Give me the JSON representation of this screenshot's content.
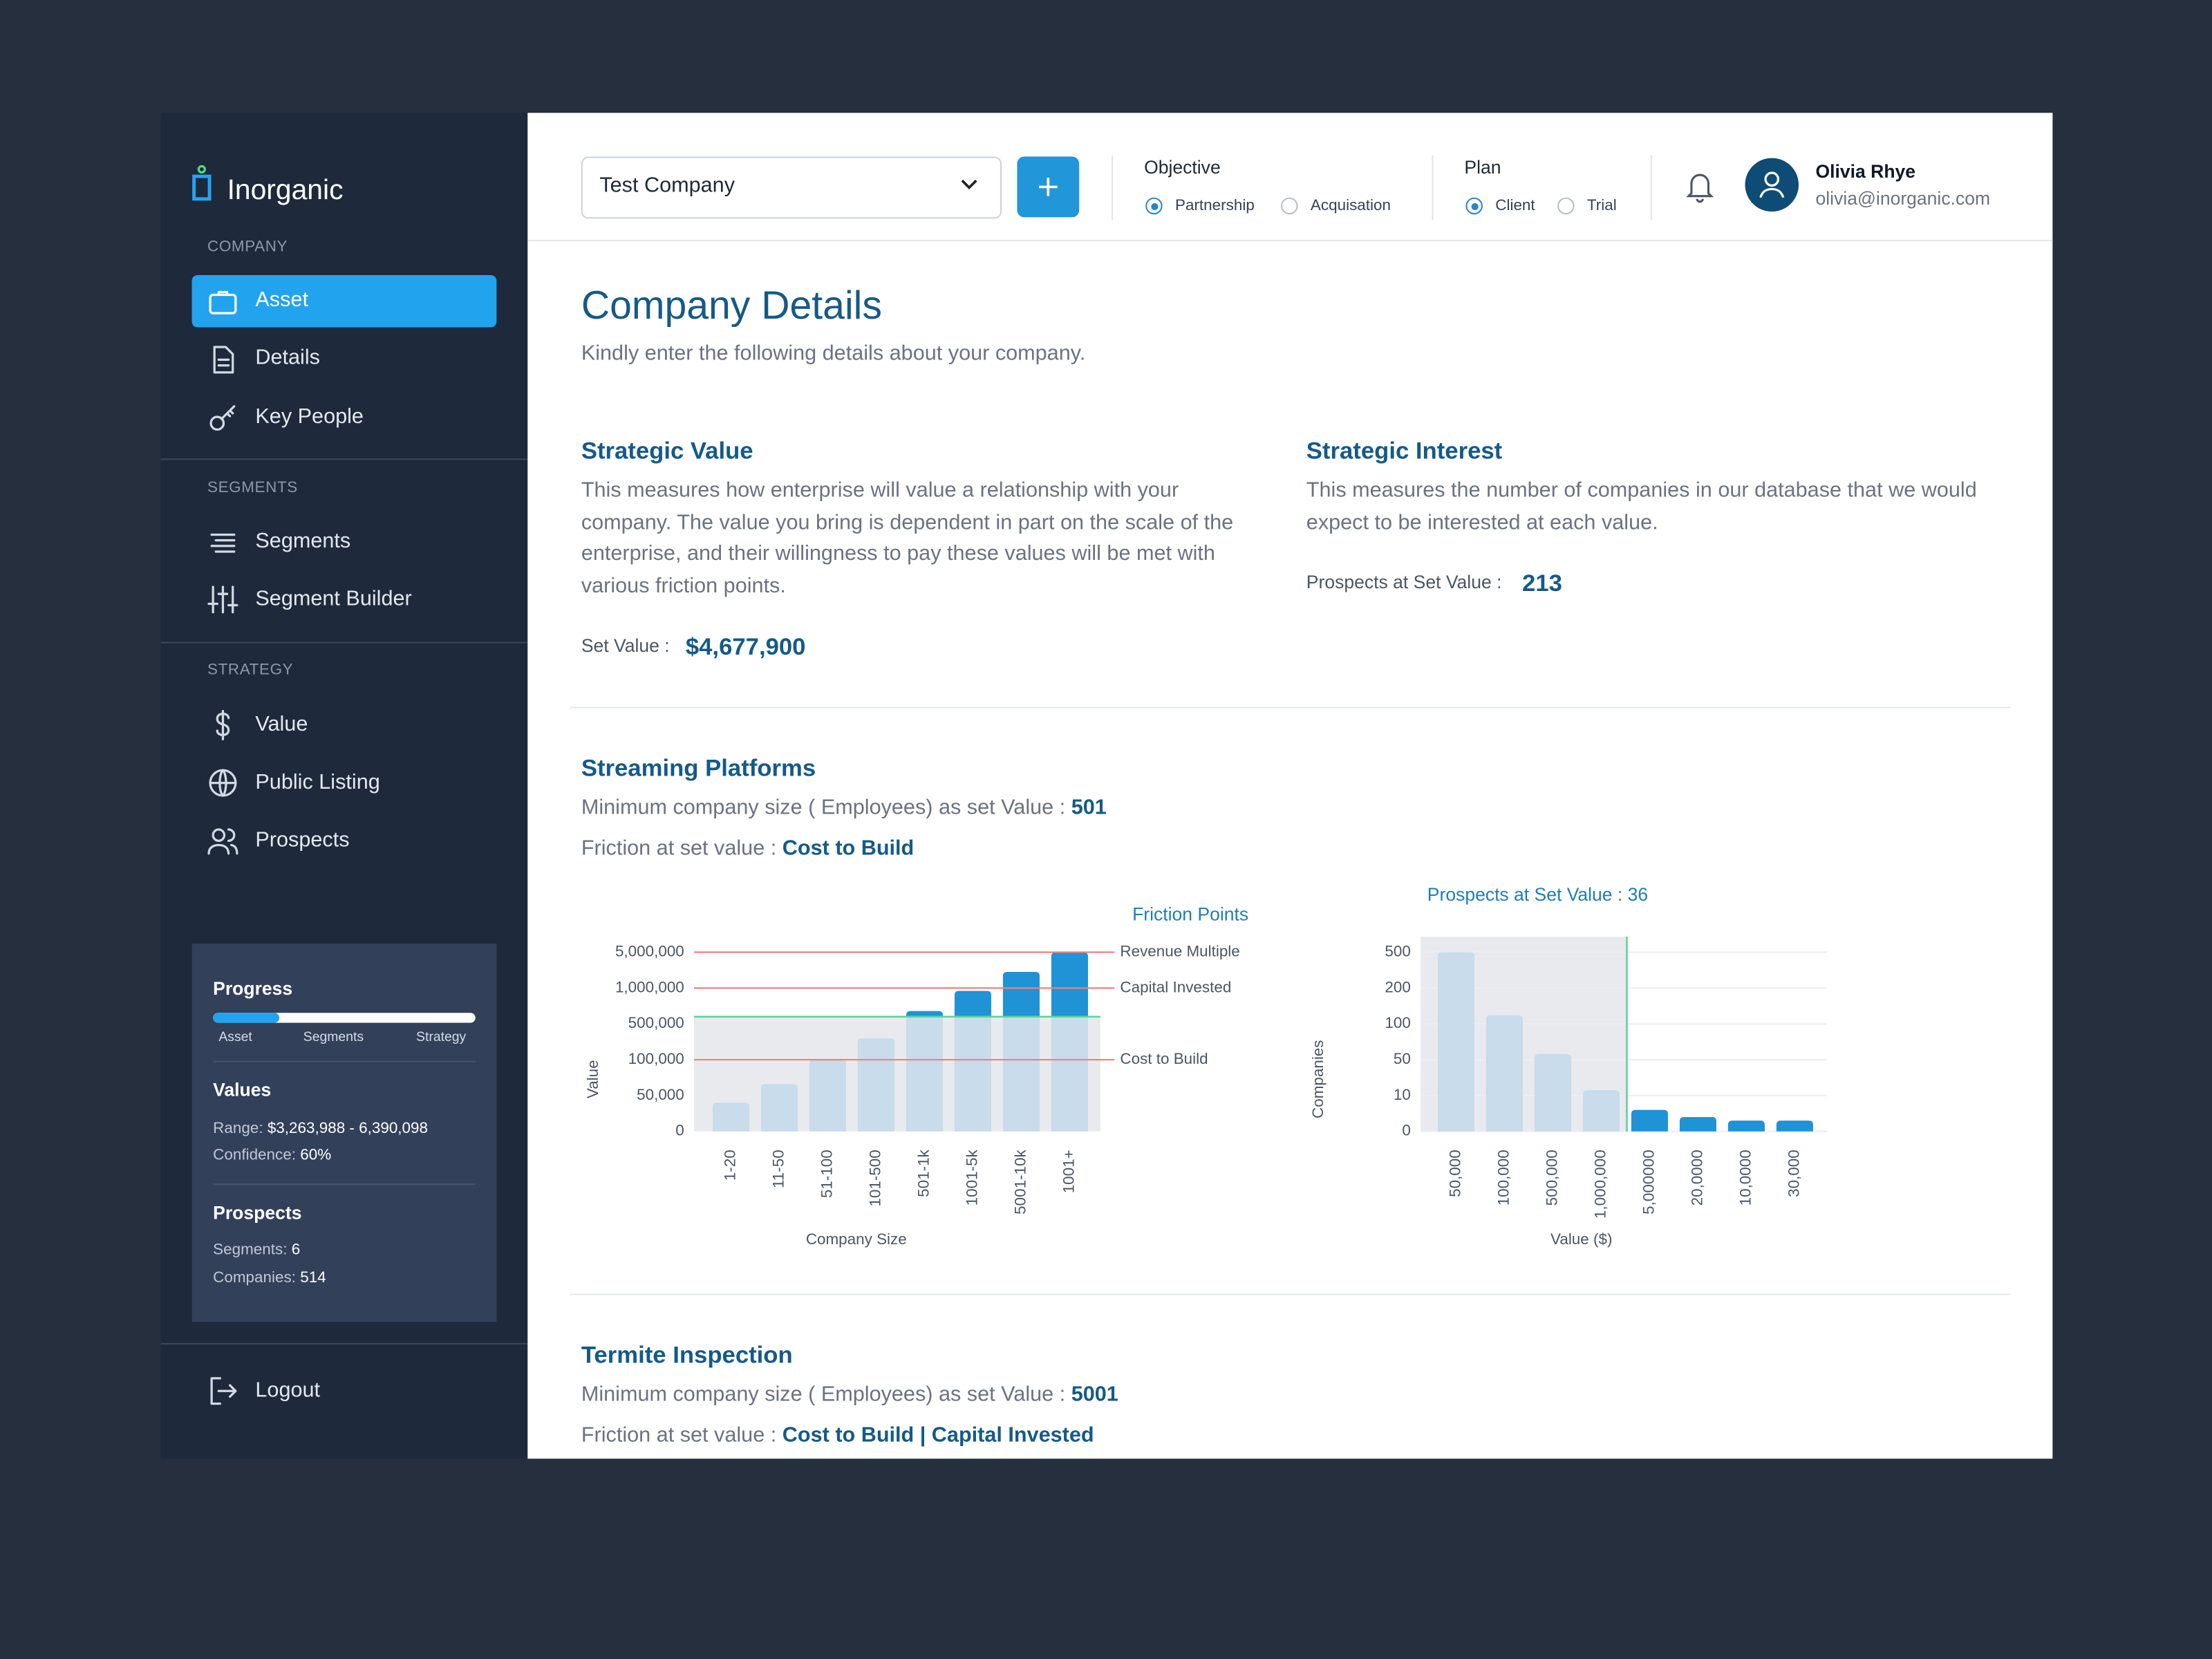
{
  "sidebar": {
    "brand": "Inorganic",
    "sections": [
      {
        "title": "COMPANY",
        "items": [
          "Asset",
          "Details",
          "Key People"
        ]
      },
      {
        "title": "SEGMENTS",
        "items": [
          "Segments",
          "Segment Builder"
        ]
      },
      {
        "title": "STRATEGY",
        "items": [
          "Value",
          "Public Listing",
          "Prospects"
        ]
      }
    ],
    "progress": {
      "title": "Progress",
      "steps": [
        "Asset",
        "Segments",
        "Strategy"
      ],
      "percent": 25
    },
    "values": {
      "title": "Values",
      "rows": [
        {
          "label": "Range:",
          "value": "$3,263,988 - 6,390,098"
        },
        {
          "label": "Confidence:",
          "value": "60%"
        }
      ]
    },
    "prospects": {
      "title": "Prospects",
      "rows": [
        {
          "label": "Segments:",
          "value": "6"
        },
        {
          "label": "Companies:",
          "value": "514"
        }
      ]
    },
    "logout": "Logout"
  },
  "header": {
    "company": "Test Company",
    "objective": {
      "label": "Objective",
      "options": [
        "Partnership",
        "Acquisation"
      ],
      "selected": 0
    },
    "plan": {
      "label": "Plan",
      "options": [
        "Client",
        "Trial"
      ],
      "selected": 0
    },
    "user": {
      "name": "Olivia Rhye",
      "email": "olivia@inorganic.com"
    }
  },
  "content": {
    "title": "Company Details",
    "subtitle": "Kindly enter the following details about your company.",
    "strategic_value": {
      "title": "Strategic Value",
      "description": "This measures how enterprise will value a relationship with your company. The value you bring is dependent in part on the scale of the enterprise, and their willingness to pay these values will be met with various friction points.",
      "label": "Set Value :",
      "value": "$4,677,900"
    },
    "strategic_interest": {
      "title": "Strategic Interest",
      "description": "This measures the number of companies in our database that we would expect to be interested at each value.",
      "label": "Prospects at Set Value :",
      "value": "213"
    },
    "segments": [
      {
        "title": "Streaming Platforms",
        "min_label": "Minimum company size ( Employees) as set Value :",
        "min_value": "501",
        "friction_label": "Friction at set value :",
        "friction_value": "Cost to Build"
      },
      {
        "title": "Termite Inspection",
        "min_label": "Minimum company size ( Employees) as set Value :",
        "min_value": "5001",
        "friction_label": "Friction at set value :",
        "friction_value": "Cost to Build | Capital Invested"
      }
    ]
  },
  "chart_data": [
    {
      "type": "bar",
      "title": "Friction Points",
      "xlabel": "Company Size",
      "ylabel": "Value",
      "categories": [
        "1-20",
        "11-50",
        "51-100",
        "101-500",
        "501-1k",
        "1001-5k",
        "5001-10k",
        "1001+"
      ],
      "values": [
        40000,
        66000,
        100000,
        340000,
        680000,
        960000,
        2800000,
        5000000
      ],
      "ylim": [
        0,
        5000000
      ],
      "yticks": [
        0,
        {
          "value": 50000,
          "label": "50,000"
        },
        {
          "value": 100000,
          "label": "100,000"
        },
        {
          "value": 500000,
          "label": "500,000"
        },
        {
          "value": 1000000,
          "label": "1,000,000"
        },
        {
          "value": 5000000,
          "label": "5,000,000"
        }
      ],
      "set_value": 600000,
      "below_color": "#c8dceb",
      "above_color": "#1f93d6",
      "shade_color": "#e8eaee",
      "set_line_color": "#5fd49a",
      "reference_lines": [
        {
          "name": "Revenue Multiple",
          "value": 5000000,
          "color": "#ef8080"
        },
        {
          "name": "Capital Invested",
          "value": 1000000,
          "color": "#ef8080"
        },
        {
          "name": "Cost to Build",
          "value": 100000,
          "color": "#ef8080"
        }
      ]
    },
    {
      "type": "bar",
      "title": "Prospects at Set Value : 36",
      "xlabel": "Value ($)",
      "ylabel": "Companies",
      "categories": [
        "50,000",
        "100,000",
        "500,000",
        "1,000,000",
        "5,000000",
        "20,0000",
        "10,0000",
        "30,000"
      ],
      "values": [
        500,
        124,
        58,
        16,
        6,
        4,
        3,
        3
      ],
      "ylim": [
        0,
        500
      ],
      "yticks": [
        0,
        10,
        50,
        100,
        200,
        500
      ],
      "grid": true,
      "bar_colors": [
        "#c8dceb",
        "#c8dceb",
        "#c8dceb",
        "#c8dceb",
        "#1f93d6",
        "#1f93d6",
        "#1f93d6",
        "#1f93d6"
      ],
      "shade_color": "#e8eaee",
      "set_line_color": "#5fd49a"
    }
  ]
}
